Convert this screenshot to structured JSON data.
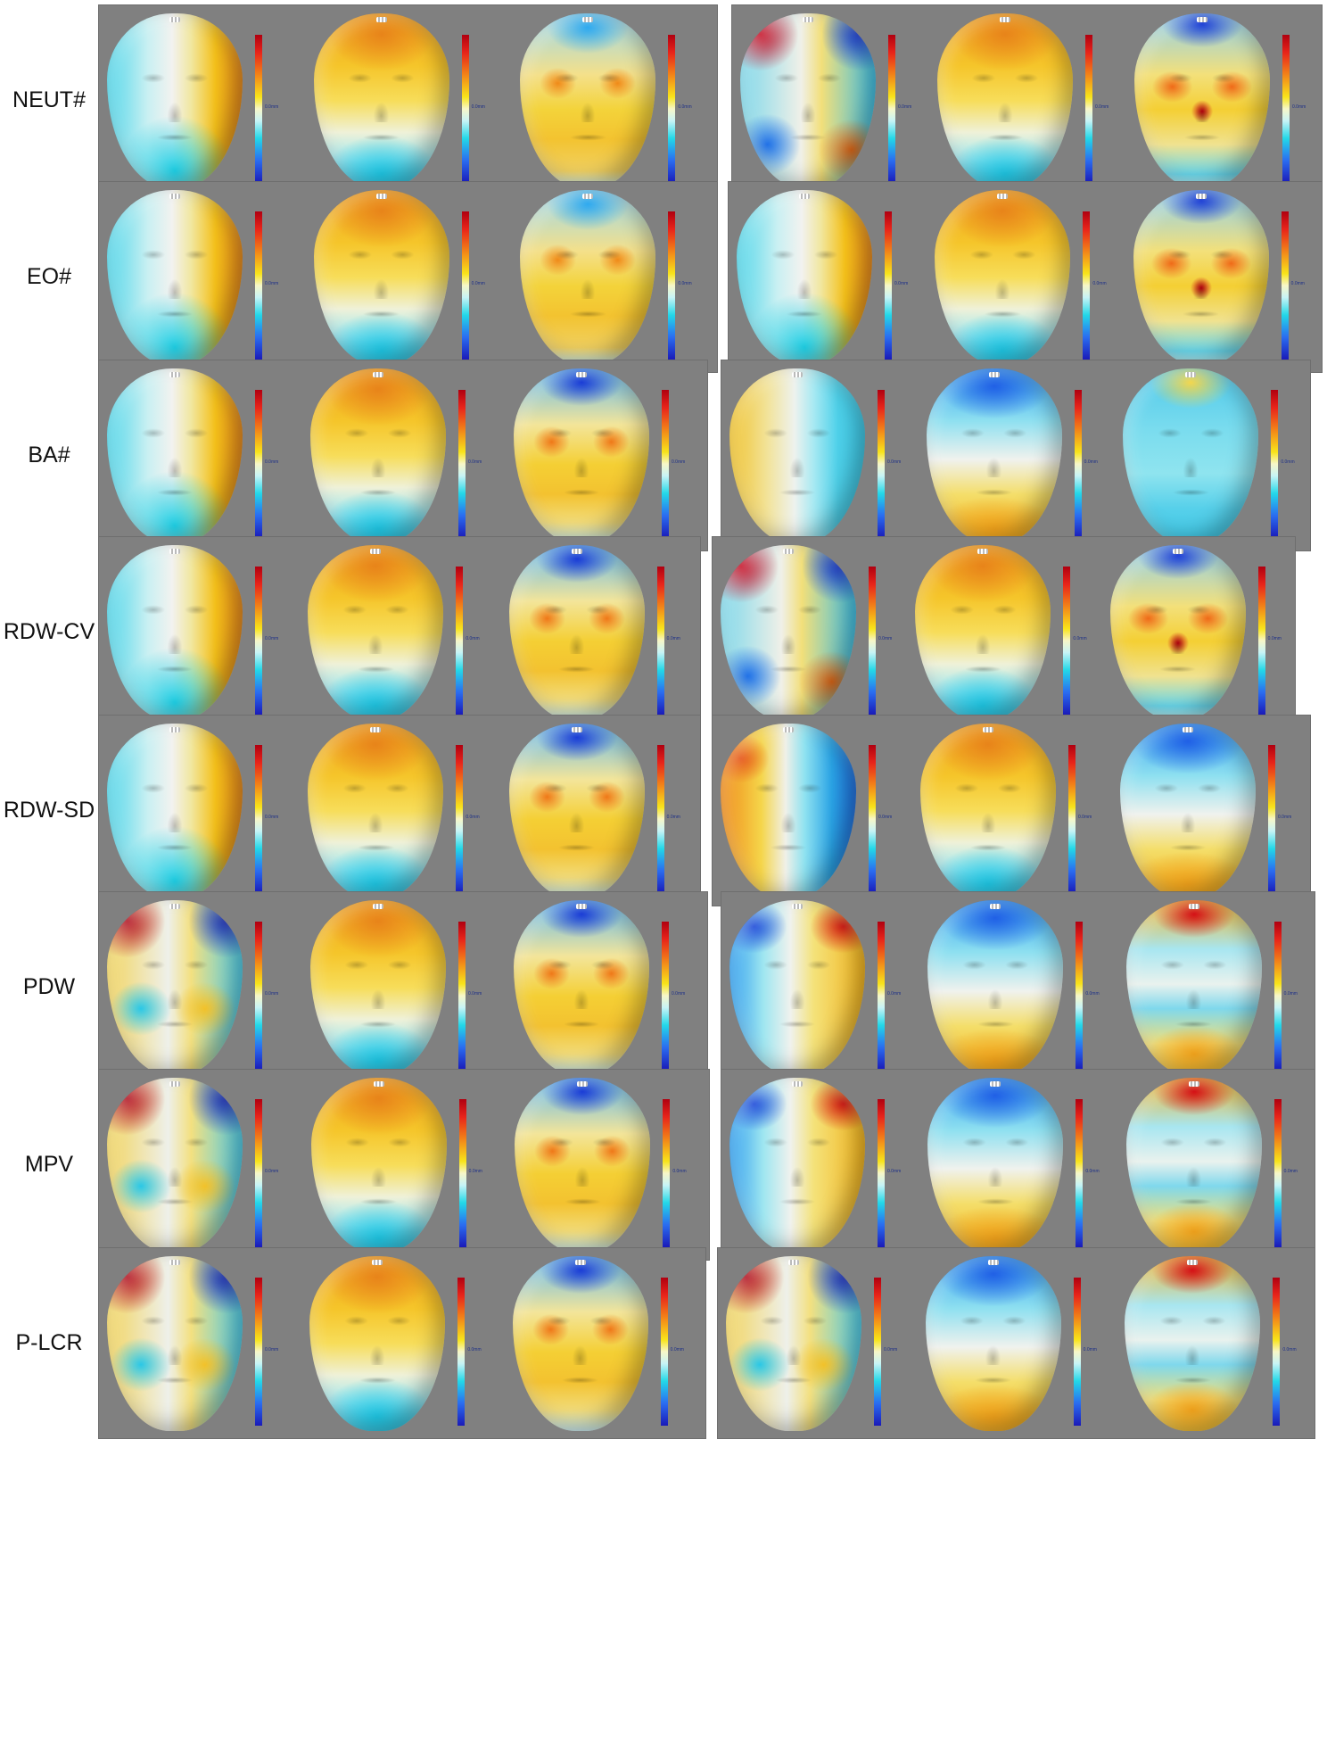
{
  "rows": [
    {
      "label": "NEUT#"
    },
    {
      "label": "EO#"
    },
    {
      "label": "BA#"
    },
    {
      "label": "RDW-CV"
    },
    {
      "label": "RDW-SD"
    },
    {
      "label": "PDW"
    },
    {
      "label": "MPV"
    },
    {
      "label": "P-LCR"
    }
  ],
  "colormap": {
    "scale_colors": [
      "#b00010",
      "#e8241a",
      "#f38a18",
      "#f8e41a",
      "#f7f7c8",
      "#23d8e8",
      "#2a6cf0",
      "#1a1ab8"
    ],
    "panel_background": "#808080"
  },
  "scalebar_labels": {
    "zero": "0.0mm"
  }
}
